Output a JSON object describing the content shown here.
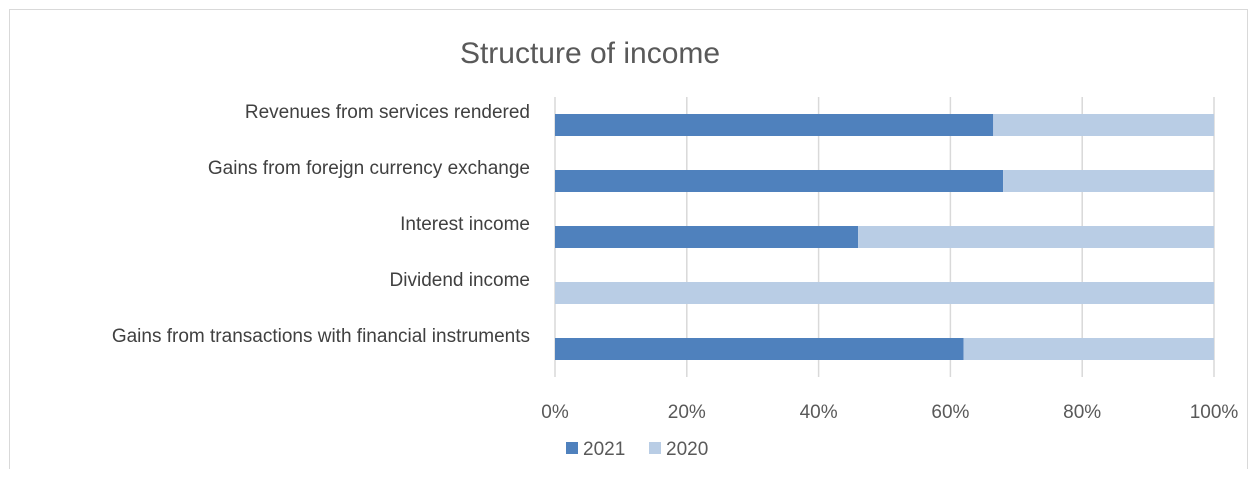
{
  "chart_data": {
    "type": "bar",
    "orientation": "horizontal",
    "stacked": "percent",
    "title": "Structure of income",
    "categories": [
      "Revenues from services rendered",
      "Gains from forejgn currency exchange",
      "Interest income",
      "Dividend income",
      "Gains from transactions with financial instruments"
    ],
    "series": [
      {
        "name": "2021",
        "color": "#4f81bd",
        "values": [
          66.5,
          68,
          46,
          0,
          62
        ]
      },
      {
        "name": "2020",
        "color": "#b9cde5",
        "values": [
          33.5,
          32,
          54,
          100,
          38
        ]
      }
    ],
    "xlim": [
      0,
      100
    ],
    "x_ticks": [
      "0%",
      "20%",
      "40%",
      "60%",
      "80%",
      "100%"
    ],
    "grid": true,
    "legend": "bottom"
  }
}
